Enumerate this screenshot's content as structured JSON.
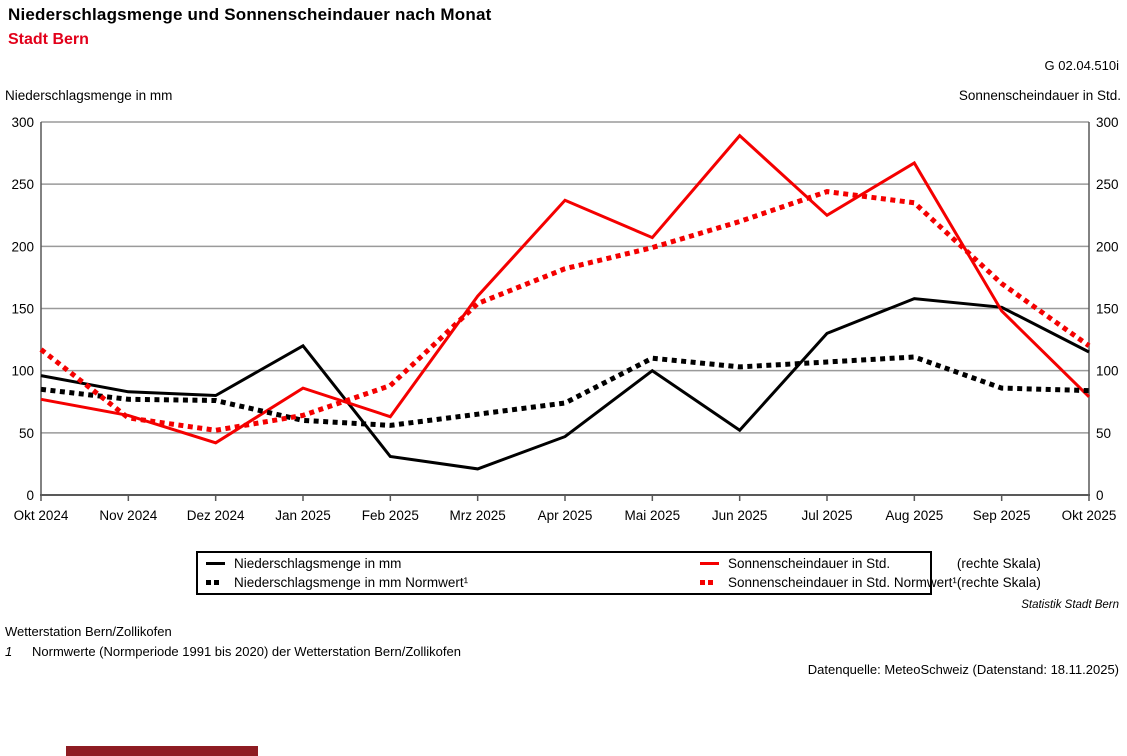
{
  "header": {
    "title": "Niederschlagsmenge und Sonnenscheindauer nach Monat",
    "subtitle": "Stadt Bern",
    "graphic_id": "G 02.04.510i"
  },
  "axis_titles": {
    "left": "Niederschlagsmenge in mm",
    "right": "Sonnenscheindauer in Std."
  },
  "chart_data": {
    "type": "line",
    "title": "Niederschlagsmenge und Sonnenscheindauer nach Monat",
    "subtitle": "Stadt Bern",
    "xlabel": "",
    "ylabel_left": "Niederschlagsmenge in mm",
    "ylabel_right": "Sonnenscheindauer in Std.",
    "ylim": [
      0,
      300
    ],
    "y_ticks": [
      0,
      50,
      100,
      150,
      200,
      250,
      300
    ],
    "grid": "horizontal",
    "legend_position": "bottom",
    "categories": [
      "Okt 2024",
      "Nov 2024",
      "Dez 2024",
      "Jan 2025",
      "Feb 2025",
      "Mrz 2025",
      "Apr 2025",
      "Mai 2025",
      "Jun 2025",
      "Jul 2025",
      "Aug 2025",
      "Sep 2025",
      "Okt 2025"
    ],
    "series": [
      {
        "name": "Niederschlagsmenge in mm",
        "axis": "left",
        "style": "solid",
        "color": "#000000",
        "values": [
          96,
          83,
          80,
          120,
          31,
          21,
          47,
          100,
          52,
          130,
          158,
          151,
          115
        ]
      },
      {
        "name": "Sonnenscheindauer in Std.",
        "axis": "right",
        "style": "solid",
        "color": "#f40000",
        "values": [
          77,
          64,
          42,
          86,
          63,
          160,
          237,
          207,
          289,
          225,
          267,
          148,
          79
        ]
      },
      {
        "name": "Niederschlagsmenge in mm Normwert¹",
        "axis": "left",
        "style": "dotted",
        "color": "#000000",
        "values": [
          85,
          77,
          76,
          60,
          56,
          65,
          74,
          110,
          103,
          107,
          111,
          86,
          84
        ]
      },
      {
        "name": "Sonnenscheindauer in Std. Normwert¹",
        "axis": "right",
        "style": "dotted",
        "color": "#f40000",
        "values": [
          117,
          62,
          52,
          64,
          88,
          154,
          182,
          199,
          220,
          244,
          235,
          170,
          120
        ]
      }
    ]
  },
  "legend": {
    "items": [
      {
        "label": "Niederschlagsmenge in mm",
        "style": "solid",
        "color": "black",
        "scale_note": ""
      },
      {
        "label": "Sonnenscheindauer in Std.",
        "style": "solid",
        "color": "red",
        "scale_note": "(rechte Skala)"
      },
      {
        "label": "Niederschlagsmenge in mm Normwert¹",
        "style": "dotted",
        "color": "black",
        "scale_note": ""
      },
      {
        "label": "Sonnenscheindauer in Std. Normwert¹",
        "style": "dotted",
        "color": "red",
        "scale_note": "(rechte Skala)"
      }
    ]
  },
  "footer": {
    "statistik": "Statistik Stadt Bern",
    "station": "Wetterstation Bern/Zollikofen",
    "footnote_marker": "1",
    "footnote_text": "Normwerte (Normperiode 1991 bis 2020) der Wetterstation Bern/Zollikofen",
    "datasource": "Datenquelle: MeteoSchweiz (Datenstand: 18.11.2025)"
  },
  "colors": {
    "line_red": "#f40000",
    "brand_red": "#e2001a",
    "gridline": "#9a9a9a",
    "axis": "#595959",
    "brand_bar": "#8e1c22"
  }
}
